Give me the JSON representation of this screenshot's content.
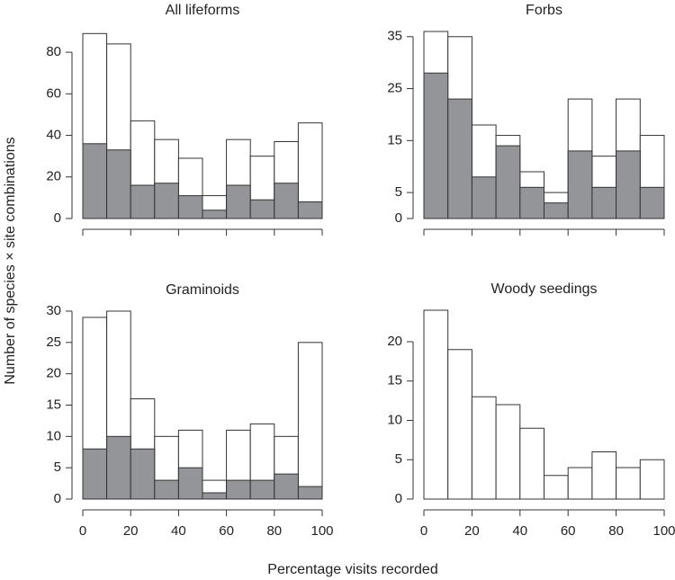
{
  "xlabel": "Percentage visits recorded",
  "ylabel": "Number of species × site combinations",
  "chart_data": [
    {
      "type": "histogram",
      "title": "All lifeforms",
      "bins": [
        0,
        10,
        20,
        30,
        40,
        50,
        60,
        70,
        80,
        90,
        100
      ],
      "series": [
        {
          "color": "#ffffff",
          "values": [
            89,
            84,
            47,
            38,
            29,
            11,
            38,
            30,
            37,
            46
          ]
        },
        {
          "color": "#939598",
          "values": [
            36,
            33,
            16,
            17,
            11,
            4,
            16,
            9,
            17,
            8
          ]
        }
      ],
      "xlim": [
        0,
        100
      ],
      "xticks": [
        0,
        20,
        40,
        60,
        80,
        100
      ],
      "xtick_labels": false,
      "ylim": [
        0,
        90
      ],
      "yticks": [
        0,
        20,
        40,
        60,
        80
      ]
    },
    {
      "type": "histogram",
      "title": "Forbs",
      "bins": [
        0,
        10,
        20,
        30,
        40,
        50,
        60,
        70,
        80,
        90,
        100
      ],
      "series": [
        {
          "color": "#ffffff",
          "values": [
            36,
            35,
            18,
            16,
            9,
            5,
            23,
            12,
            23,
            16
          ]
        },
        {
          "color": "#939598",
          "values": [
            28,
            23,
            8,
            14,
            6,
            3,
            13,
            6,
            13,
            6
          ]
        }
      ],
      "xlim": [
        0,
        100
      ],
      "xticks": [
        0,
        20,
        40,
        60,
        80,
        100
      ],
      "xtick_labels": false,
      "ylim": [
        0,
        36
      ],
      "yticks": [
        0,
        5,
        15,
        25,
        35
      ]
    },
    {
      "type": "histogram",
      "title": "Graminoids",
      "bins": [
        0,
        10,
        20,
        30,
        40,
        50,
        60,
        70,
        80,
        90,
        100
      ],
      "series": [
        {
          "color": "#ffffff",
          "values": [
            29,
            30,
            16,
            10,
            11,
            3,
            11,
            12,
            10,
            25
          ]
        },
        {
          "color": "#939598",
          "values": [
            8,
            10,
            8,
            3,
            5,
            1,
            3,
            3,
            4,
            2
          ]
        }
      ],
      "xlim": [
        0,
        100
      ],
      "xticks": [
        0,
        20,
        40,
        60,
        80,
        100
      ],
      "xtick_labels": true,
      "ylim": [
        0,
        30
      ],
      "yticks": [
        0,
        5,
        10,
        15,
        20,
        25,
        30
      ]
    },
    {
      "type": "histogram",
      "title": "Woody seedings",
      "bins": [
        0,
        10,
        20,
        30,
        40,
        50,
        60,
        70,
        80,
        90,
        100
      ],
      "series": [
        {
          "color": "#ffffff",
          "values": [
            24,
            19,
            13,
            12,
            9,
            3,
            4,
            6,
            4,
            5
          ]
        }
      ],
      "xlim": [
        0,
        100
      ],
      "xticks": [
        0,
        20,
        40,
        60,
        80,
        100
      ],
      "xtick_labels": true,
      "ylim": [
        0,
        24
      ],
      "yticks": [
        0,
        5,
        10,
        15,
        20
      ]
    }
  ]
}
